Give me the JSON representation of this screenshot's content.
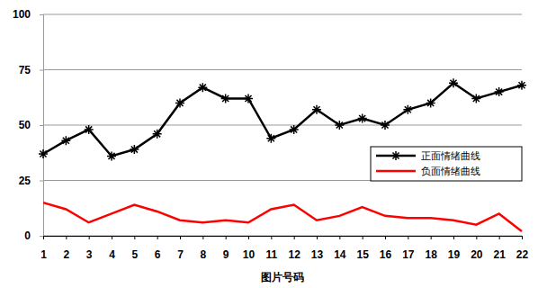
{
  "chart_data": {
    "type": "line",
    "x_label": "图片号码",
    "categories": [
      "1",
      "2",
      "3",
      "4",
      "5",
      "6",
      "7",
      "8",
      "9",
      "10",
      "11",
      "12",
      "13",
      "14",
      "15",
      "16",
      "17",
      "18",
      "19",
      "20",
      "21",
      "22"
    ],
    "series": [
      {
        "name": "正面情绪曲线",
        "color": "#000000",
        "marker": "asterisk",
        "line_style": "solid",
        "values": [
          37,
          43,
          48,
          36,
          39,
          46,
          60,
          67,
          62,
          62,
          44,
          48,
          57,
          50,
          53,
          50,
          57,
          60,
          69,
          62,
          65,
          68
        ]
      },
      {
        "name": "负面情绪曲线",
        "color": "#ff0000",
        "marker": "none",
        "line_style": "solid",
        "values": [
          15,
          12,
          6,
          10,
          14,
          11,
          7,
          6,
          7,
          6,
          12,
          14,
          7,
          9,
          13,
          9,
          8,
          8,
          7,
          5,
          10,
          2
        ]
      }
    ],
    "ylim": [
      0,
      100
    ],
    "yticks": [
      0,
      25,
      50,
      75,
      100
    ],
    "grid": true,
    "legend": "right"
  }
}
